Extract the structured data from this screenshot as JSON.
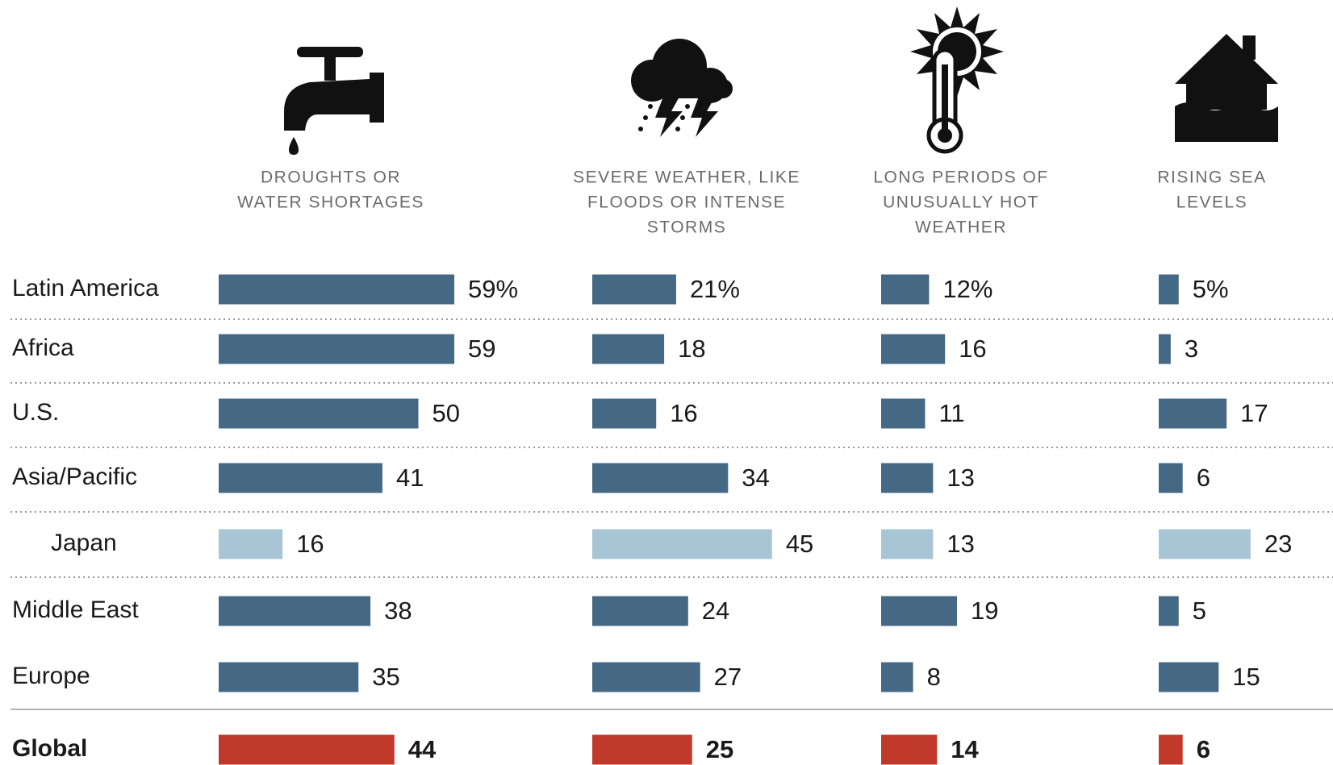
{
  "chart_data": {
    "type": "bar",
    "orientation": "horizontal",
    "categories": [
      "Latin America",
      "Africa",
      "U.S.",
      "Asia/Pacific",
      "Japan",
      "Middle East",
      "Europe",
      "Global"
    ],
    "bar_colors": [
      "#456885",
      "#456885",
      "#456885",
      "#456885",
      "#a8c5d6",
      "#456885",
      "#456885",
      "#c0392b"
    ],
    "series": [
      {
        "title": [
          "DROUGHTS OR",
          "WATER SHORTAGES"
        ],
        "values": [
          59,
          59,
          50,
          41,
          16,
          38,
          35,
          44
        ],
        "value_labels": [
          "59%",
          "59",
          "50",
          "41",
          "16",
          "38",
          "35",
          "44"
        ]
      },
      {
        "title": [
          "SEVERE WEATHER, LIKE",
          "FLOODS OR INTENSE",
          "STORMS"
        ],
        "values": [
          21,
          18,
          16,
          34,
          45,
          24,
          27,
          25
        ],
        "value_labels": [
          "21%",
          "18",
          "16",
          "34",
          "45",
          "24",
          "27",
          "25"
        ]
      },
      {
        "title": [
          "LONG PERIODS OF",
          "UNUSUALLY HOT",
          "WEATHER"
        ],
        "values": [
          12,
          16,
          11,
          13,
          13,
          19,
          8,
          14
        ],
        "value_labels": [
          "12%",
          "16",
          "11",
          "13",
          "13",
          "19",
          "8",
          "14"
        ]
      },
      {
        "title": [
          "RISING SEA",
          "LEVELS"
        ],
        "values": [
          5,
          3,
          17,
          6,
          23,
          5,
          15,
          6
        ],
        "value_labels": [
          "5%",
          "3",
          "17",
          "6",
          "23",
          "5",
          "15",
          "6"
        ]
      }
    ]
  }
}
